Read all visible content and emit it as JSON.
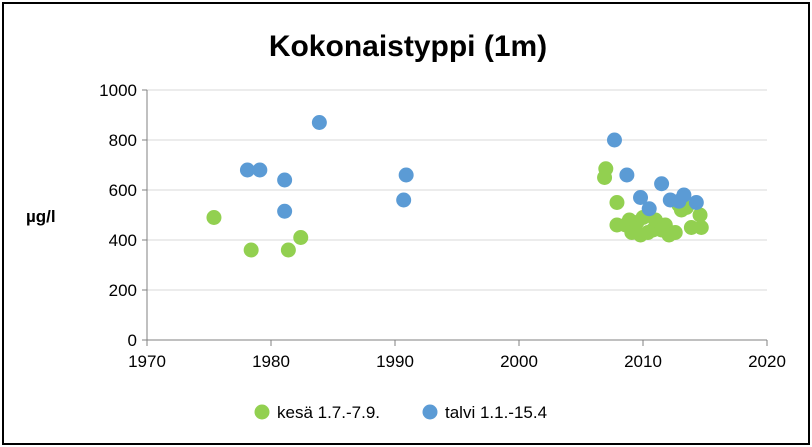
{
  "chart_data": {
    "type": "scatter",
    "title": "Kokonaistyppi (1m)",
    "xlabel": "",
    "ylabel": "µg/l",
    "xlim": [
      1970,
      2020
    ],
    "ylim": [
      0,
      1000
    ],
    "x_ticks": [
      "1970",
      "1980",
      "1990",
      "2000",
      "2010",
      "2020"
    ],
    "y_ticks": [
      "0",
      "200",
      "400",
      "600",
      "800",
      "1000"
    ],
    "grid": "horizontal",
    "legend_position": "bottom",
    "series": [
      {
        "name": "kesä 1.7.-7.9.",
        "color": "#92D050",
        "points": [
          [
            1975.4,
            490
          ],
          [
            1978.4,
            360
          ],
          [
            1981.4,
            360
          ],
          [
            1982.4,
            410
          ],
          [
            2006.9,
            650
          ],
          [
            2007.0,
            685
          ],
          [
            2007.9,
            550
          ],
          [
            2007.9,
            460
          ],
          [
            2008.6,
            460
          ],
          [
            2008.9,
            480
          ],
          [
            2009.1,
            430
          ],
          [
            2009.5,
            470
          ],
          [
            2009.8,
            420
          ],
          [
            2010.0,
            490
          ],
          [
            2010.4,
            430
          ],
          [
            2010.8,
            440
          ],
          [
            2011.0,
            480
          ],
          [
            2011.5,
            440
          ],
          [
            2011.8,
            460
          ],
          [
            2012.1,
            420
          ],
          [
            2012.6,
            430
          ],
          [
            2012.9,
            540
          ],
          [
            2013.1,
            520
          ],
          [
            2013.5,
            530
          ],
          [
            2013.9,
            450
          ],
          [
            2014.6,
            500
          ],
          [
            2014.7,
            450
          ]
        ]
      },
      {
        "name": "talvi 1.1.-15.4",
        "color": "#5B9BD5",
        "points": [
          [
            1978.1,
            680
          ],
          [
            1979.1,
            680
          ],
          [
            1981.1,
            640
          ],
          [
            1981.1,
            515
          ],
          [
            1983.9,
            870
          ],
          [
            1990.7,
            560
          ],
          [
            1990.9,
            660
          ],
          [
            2007.7,
            800
          ],
          [
            2008.7,
            660
          ],
          [
            2009.8,
            570
          ],
          [
            2010.5,
            525
          ],
          [
            2011.5,
            625
          ],
          [
            2012.2,
            560
          ],
          [
            2012.9,
            555
          ],
          [
            2013.3,
            580
          ],
          [
            2014.3,
            550
          ]
        ]
      }
    ]
  }
}
